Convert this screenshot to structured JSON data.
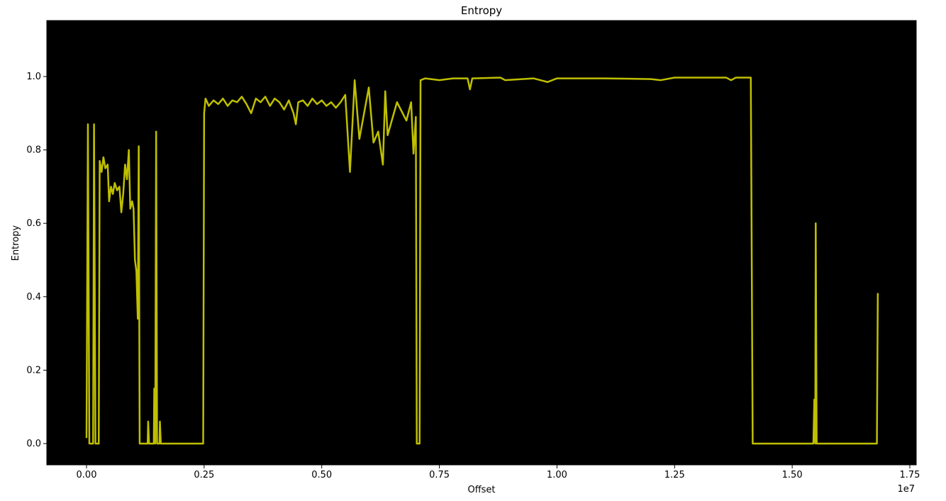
{
  "chart_data": {
    "type": "line",
    "title": "Entropy",
    "x_label": "Offset",
    "y_label": "Entropy",
    "x_offset_label": "1e7",
    "color": "#bfbf00",
    "background": "#000000",
    "xlim": [
      -0.0844,
      1.7636
    ],
    "ylim": [
      -0.058,
      1.1525
    ],
    "xticks": [
      {
        "value": 0,
        "label": "0.00"
      },
      {
        "value": 0.25,
        "label": "0.25"
      },
      {
        "value": 0.5,
        "label": "0.50"
      },
      {
        "value": 0.75,
        "label": "0.75"
      },
      {
        "value": 1,
        "label": "1.00"
      },
      {
        "value": 1.25,
        "label": "1.25"
      },
      {
        "value": 1.5,
        "label": "1.50"
      },
      {
        "value": 1.75,
        "label": "1.75"
      }
    ],
    "yticks": [
      {
        "value": 0,
        "label": "0.0"
      },
      {
        "value": 0.2,
        "label": "0.2"
      },
      {
        "value": 0.4,
        "label": "0.4"
      },
      {
        "value": 0.6,
        "label": "0.6"
      },
      {
        "value": 0.8,
        "label": "0.8"
      },
      {
        "value": 1,
        "label": "1.0"
      }
    ],
    "x": [
      0,
      0.003,
      0.006,
      0.014,
      0.016,
      0.019,
      0.026,
      0.028,
      0.032,
      0.036,
      0.04,
      0.045,
      0.048,
      0.052,
      0.056,
      0.06,
      0.065,
      0.07,
      0.074,
      0.078,
      0.082,
      0.086,
      0.09,
      0.093,
      0.097,
      0.1,
      0.103,
      0.106,
      0.109,
      0.111,
      0.113,
      0.13,
      0.131,
      0.133,
      0.143,
      0.144,
      0.146,
      0.148,
      0.15,
      0.155,
      0.156,
      0.158,
      0.248,
      0.25,
      0.253,
      0.26,
      0.27,
      0.28,
      0.29,
      0.3,
      0.31,
      0.32,
      0.33,
      0.34,
      0.35,
      0.36,
      0.37,
      0.38,
      0.39,
      0.4,
      0.41,
      0.42,
      0.43,
      0.44,
      0.445,
      0.45,
      0.46,
      0.47,
      0.48,
      0.49,
      0.5,
      0.51,
      0.52,
      0.53,
      0.54,
      0.55,
      0.56,
      0.57,
      0.58,
      0.6,
      0.61,
      0.62,
      0.63,
      0.635,
      0.64,
      0.66,
      0.68,
      0.69,
      0.695,
      0.7,
      0.702,
      0.708,
      0.71,
      0.72,
      0.75,
      0.78,
      0.81,
      0.815,
      0.82,
      0.88,
      0.89,
      0.95,
      0.98,
      1.0,
      1.1,
      1.2,
      1.22,
      1.25,
      1.3,
      1.36,
      1.37,
      1.38,
      1.412,
      1.416,
      1.545,
      1.547,
      1.549,
      1.55,
      1.552,
      1.68,
      1.682
    ],
    "values": [
      0.015,
      0.87,
      0,
      0,
      0.87,
      0,
      0,
      0.77,
      0.74,
      0.78,
      0.75,
      0.76,
      0.66,
      0.7,
      0.68,
      0.71,
      0.69,
      0.7,
      0.63,
      0.68,
      0.76,
      0.72,
      0.8,
      0.64,
      0.66,
      0.64,
      0.5,
      0.47,
      0.34,
      0.81,
      0,
      0,
      0.06,
      0,
      0,
      0.15,
      0,
      0.85,
      0,
      0,
      0.06,
      0,
      0,
      0.9,
      0.94,
      0.92,
      0.935,
      0.925,
      0.94,
      0.92,
      0.935,
      0.93,
      0.945,
      0.925,
      0.9,
      0.94,
      0.93,
      0.945,
      0.92,
      0.94,
      0.93,
      0.91,
      0.935,
      0.9,
      0.87,
      0.93,
      0.935,
      0.92,
      0.94,
      0.925,
      0.935,
      0.92,
      0.93,
      0.915,
      0.93,
      0.95,
      0.74,
      0.99,
      0.83,
      0.97,
      0.82,
      0.85,
      0.76,
      0.96,
      0.84,
      0.93,
      0.88,
      0.93,
      0.79,
      0.89,
      0,
      0,
      0.99,
      0.995,
      0.99,
      0.995,
      0.995,
      0.965,
      0.995,
      0.997,
      0.99,
      0.995,
      0.985,
      0.995,
      0.995,
      0.993,
      0.99,
      0.997,
      0.997,
      0.997,
      0.99,
      0.997,
      0.997,
      0,
      0,
      0.12,
      0,
      0.6,
      0,
      0,
      0.41
    ]
  }
}
